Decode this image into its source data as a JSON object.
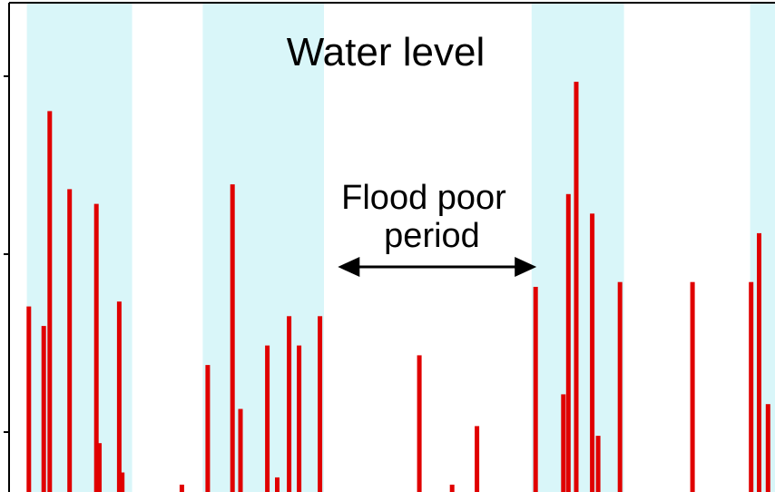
{
  "chart_data": {
    "type": "bar",
    "title": "Water level",
    "annotation": {
      "lines": [
        "Flood poor",
        "period"
      ],
      "arrow": "double-headed",
      "x_from": 33,
      "x_to": 53
    },
    "xlim": [
      0,
      77
    ],
    "ylim": [
      0,
      100
    ],
    "grid": false,
    "legend": "none",
    "colors": {
      "bar": "#e00000",
      "band": "#d9f6f9",
      "axis": "#000000",
      "text": "#000000"
    },
    "shaded_bands": [
      [
        1.7,
        12.3
      ],
      [
        19.4,
        31.6
      ],
      [
        52.5,
        61.8
      ],
      [
        74.5,
        77
      ]
    ],
    "bars": [
      {
        "x": 1.9,
        "value": 38
      },
      {
        "x": 3.4,
        "value": 34
      },
      {
        "x": 4.0,
        "value": 78
      },
      {
        "x": 6.0,
        "value": 62
      },
      {
        "x": 8.7,
        "value": 59
      },
      {
        "x": 9.0,
        "value": 10
      },
      {
        "x": 11.0,
        "value": 39
      },
      {
        "x": 11.3,
        "value": 4
      },
      {
        "x": 17.3,
        "value": 1.5
      },
      {
        "x": 19.9,
        "value": 26
      },
      {
        "x": 22.4,
        "value": 63
      },
      {
        "x": 23.2,
        "value": 17
      },
      {
        "x": 25.9,
        "value": 30
      },
      {
        "x": 26.9,
        "value": 3
      },
      {
        "x": 28.1,
        "value": 36
      },
      {
        "x": 29.1,
        "value": 30
      },
      {
        "x": 31.2,
        "value": 36
      },
      {
        "x": 41.2,
        "value": 28
      },
      {
        "x": 44.5,
        "value": 1.5
      },
      {
        "x": 47.0,
        "value": 13.5
      },
      {
        "x": 52.9,
        "value": 42
      },
      {
        "x": 55.7,
        "value": 20
      },
      {
        "x": 56.2,
        "value": 61
      },
      {
        "x": 57.0,
        "value": 84
      },
      {
        "x": 58.6,
        "value": 57
      },
      {
        "x": 59.2,
        "value": 11.5
      },
      {
        "x": 61.4,
        "value": 43
      },
      {
        "x": 68.7,
        "value": 43
      },
      {
        "x": 74.6,
        "value": 43
      },
      {
        "x": 75.4,
        "value": 53
      },
      {
        "x": 76.3,
        "value": 18
      }
    ]
  }
}
